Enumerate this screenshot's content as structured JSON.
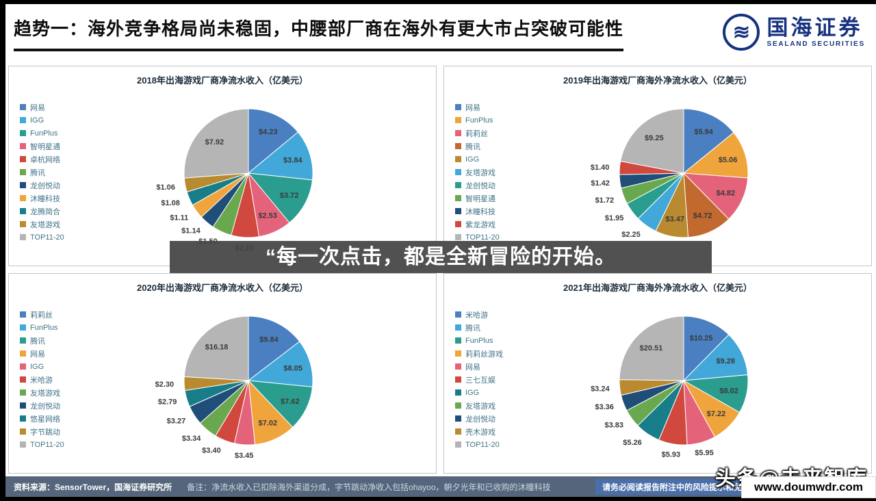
{
  "header": {
    "title": "趋势一：海外竞争格局尚未稳固，中腰部厂商在海外有更大市占突破可能性",
    "brand_name": "国海证券",
    "brand_sub": "SEALAND SECURITIES",
    "brand_color": "#15317f"
  },
  "watermark": {
    "quote": "“每一次点击，都是全新冒险的开始。",
    "credit": "头条@未来智库",
    "site": "www.doumwdr.com"
  },
  "footer": {
    "source": "资料来源：SensorTower，国海证券研究所",
    "note": "备注：净流水收入已扣除海外渠道分成，字节跳动净收入包括ohayoo，朝夕光年和已收购的沐瞳科技",
    "disclaimer": "请务必阅读报告附注中的风险提示和免责声明"
  },
  "chart_data": [
    {
      "type": "pie",
      "title": "2018年出海游戏厂商净流水收入（亿美元）",
      "legend_position": "left",
      "entries": [
        {
          "name": "网易",
          "value": 4.23,
          "label": "$4.23",
          "color": "#4a7fc1"
        },
        {
          "name": "IGG",
          "value": 3.84,
          "label": "$3.84",
          "color": "#41a8d9"
        },
        {
          "name": "FunPlus",
          "value": 3.72,
          "label": "$3.72",
          "color": "#2a9d8f"
        },
        {
          "name": "智明星通",
          "value": 2.53,
          "label": "$2.53",
          "color": "#e4637a"
        },
        {
          "name": "卓杭网络",
          "value": 2.1,
          "label": "$2.10",
          "color": "#d0483e"
        },
        {
          "name": "腾讯",
          "value": 1.5,
          "label": "$1.50",
          "color": "#6aa84f"
        },
        {
          "name": "龙创悦动",
          "value": 1.14,
          "label": "$1.14",
          "color": "#1f4e79"
        },
        {
          "name": "沐瞳科技",
          "value": 1.11,
          "label": "$1.11",
          "color": "#f0a43c"
        },
        {
          "name": "龙腾简合",
          "value": 1.08,
          "label": "$1.08",
          "color": "#177e89"
        },
        {
          "name": "友塔游戏",
          "value": 1.06,
          "label": "$1.06",
          "color": "#b98a2f"
        },
        {
          "name": "TOP11-20",
          "value": 7.92,
          "label": "$7.92",
          "color": "#b5b5b5"
        }
      ]
    },
    {
      "type": "pie",
      "title": "2019年出海游戏厂商海外净流水收入（亿美元）",
      "legend_position": "left",
      "entries": [
        {
          "name": "网易",
          "value": 5.94,
          "label": "$5.94",
          "color": "#4a7fc1"
        },
        {
          "name": "FunPlus",
          "value": 5.06,
          "label": "$5.06",
          "color": "#f0a43c"
        },
        {
          "name": "莉莉丝",
          "value": 4.82,
          "label": "$4.82",
          "color": "#e4637a"
        },
        {
          "name": "腾讯",
          "value": 4.72,
          "label": "$4.72",
          "color": "#c1692e"
        },
        {
          "name": "IGG",
          "value": 3.47,
          "label": "$3.47",
          "color": "#b98a2f"
        },
        {
          "name": "友塔游戏",
          "value": 2.25,
          "label": "$2.25",
          "color": "#41a8d9"
        },
        {
          "name": "龙创悦动",
          "value": 1.95,
          "label": "$1.95",
          "color": "#2a9d8f"
        },
        {
          "name": "智明星通",
          "value": 1.72,
          "label": "$1.72",
          "color": "#6aa84f"
        },
        {
          "name": "沐瞳科技",
          "value": 1.42,
          "label": "$1.42",
          "color": "#1f4e79"
        },
        {
          "name": "紫龙游戏",
          "value": 1.4,
          "label": "$1.40",
          "color": "#d0483e"
        },
        {
          "name": "TOP11-20",
          "value": 9.25,
          "label": "$9.25",
          "color": "#b5b5b5"
        }
      ]
    },
    {
      "type": "pie",
      "title": "2020年出海游戏厂商净流水收入（亿美元）",
      "legend_position": "left",
      "entries": [
        {
          "name": "莉莉丝",
          "value": 9.84,
          "label": "$9.84",
          "color": "#4a7fc1"
        },
        {
          "name": "FunPlus",
          "value": 8.05,
          "label": "$8.05",
          "color": "#41a8d9"
        },
        {
          "name": "腾讯",
          "value": 7.62,
          "label": "$7.62",
          "color": "#2a9d8f"
        },
        {
          "name": "网易",
          "value": 7.02,
          "label": "$7.02",
          "color": "#f0a43c"
        },
        {
          "name": "IGG",
          "value": 3.45,
          "label": "$3.45",
          "color": "#e4637a"
        },
        {
          "name": "米哈游",
          "value": 3.4,
          "label": "$3.40",
          "color": "#d0483e"
        },
        {
          "name": "友塔游戏",
          "value": 3.34,
          "label": "$3.34",
          "color": "#6aa84f"
        },
        {
          "name": "龙创悦动",
          "value": 3.27,
          "label": "$3.27",
          "color": "#1f4e79"
        },
        {
          "name": "悠星网络",
          "value": 2.79,
          "label": "$2.79",
          "color": "#177e89"
        },
        {
          "name": "字节跳动",
          "value": 2.3,
          "label": "$2.30",
          "color": "#b98a2f"
        },
        {
          "name": "TOP11-20",
          "value": 16.18,
          "label": "$16.18",
          "color": "#b5b5b5"
        }
      ]
    },
    {
      "type": "pie",
      "title": "2021年出海游戏厂商海外净流水收入（亿美元）",
      "legend_position": "left",
      "entries": [
        {
          "name": "米哈游",
          "value": 10.25,
          "label": "$10.25",
          "color": "#4a7fc1"
        },
        {
          "name": "腾讯",
          "value": 9.28,
          "label": "$9.28",
          "color": "#41a8d9"
        },
        {
          "name": "FunPlus",
          "value": 8.02,
          "label": "$8.02",
          "color": "#2a9d8f"
        },
        {
          "name": "莉莉丝游戏",
          "value": 7.22,
          "label": "$7.22",
          "color": "#f0a43c"
        },
        {
          "name": "网易",
          "value": 5.95,
          "label": "$5.95",
          "color": "#e4637a"
        },
        {
          "name": "三七互娱",
          "value": 5.93,
          "label": "$5.93",
          "color": "#d0483e"
        },
        {
          "name": "IGG",
          "value": 5.26,
          "label": "$5.26",
          "color": "#177e89"
        },
        {
          "name": "友塔游戏",
          "value": 3.83,
          "label": "$3.83",
          "color": "#6aa84f"
        },
        {
          "name": "龙创悦动",
          "value": 3.36,
          "label": "$3.36",
          "color": "#1f4e79"
        },
        {
          "name": "壳木游戏",
          "value": 3.24,
          "label": "$3.24",
          "color": "#b98a2f"
        },
        {
          "name": "TOP11-20",
          "value": 20.51,
          "label": "$20.51",
          "color": "#b5b5b5"
        }
      ]
    }
  ]
}
